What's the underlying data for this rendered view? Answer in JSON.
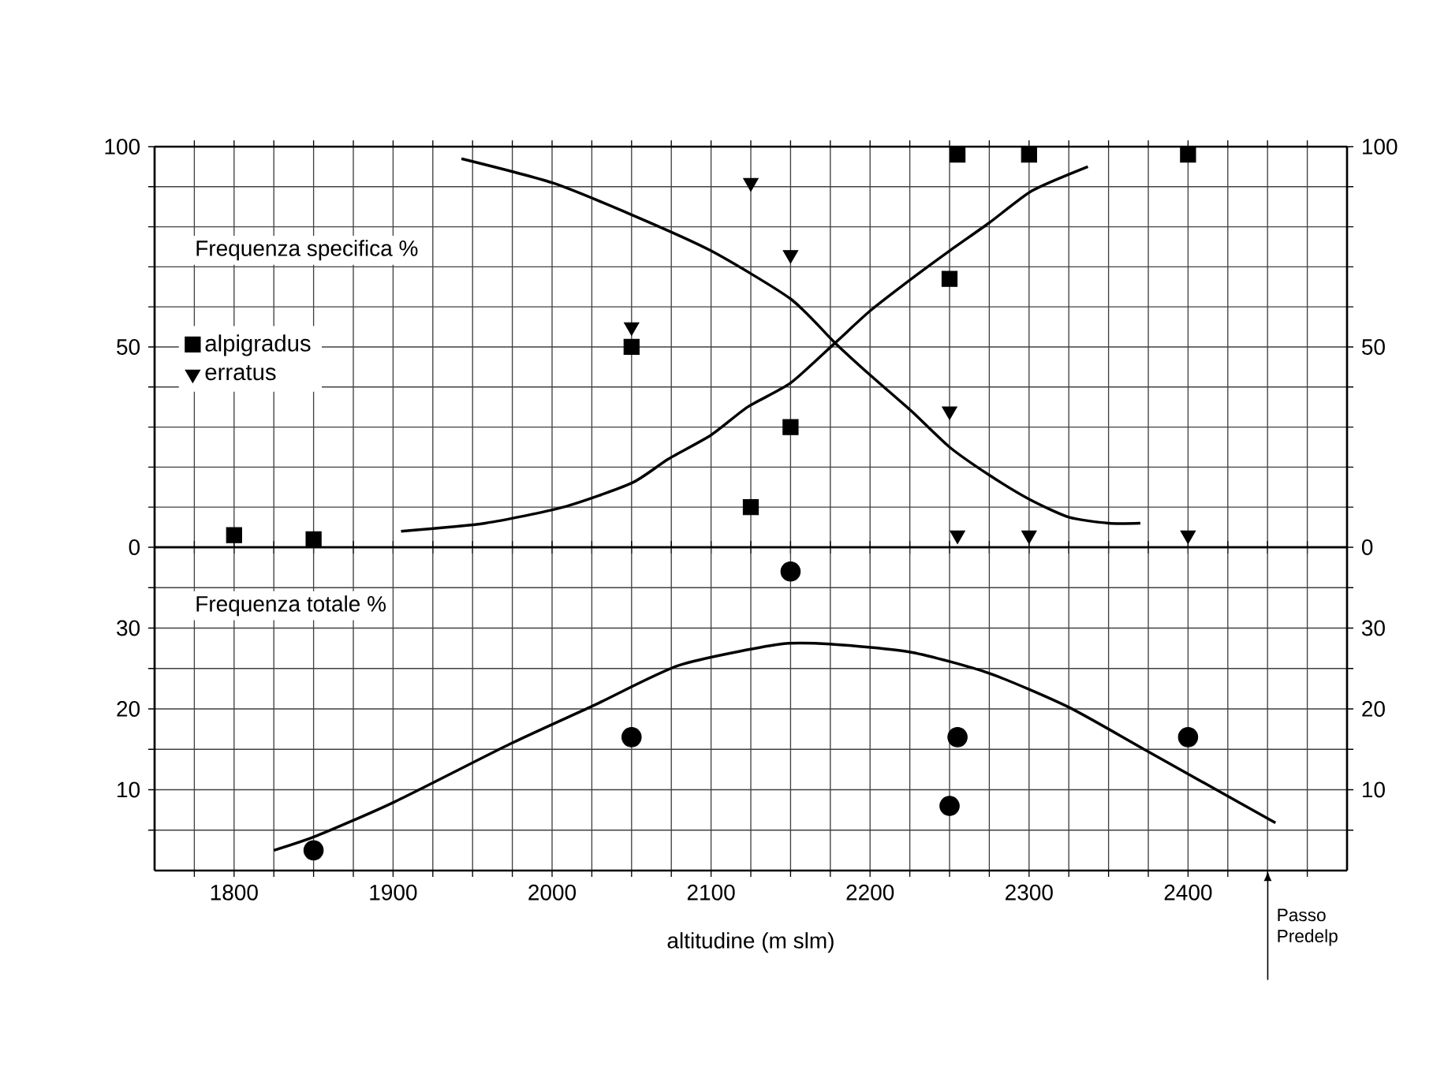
{
  "chart_data": [
    {
      "type": "scatter",
      "title": "Frequenza specifica %",
      "xlim": [
        1750,
        2500
      ],
      "xticks": [
        {
          "value": 1775,
          "label": null
        },
        1800,
        {
          "value": 1825,
          "label": null
        },
        {
          "value": 1850,
          "label": null
        },
        {
          "value": 1875,
          "label": null
        },
        1900,
        {
          "value": 1925,
          "label": null
        },
        {
          "value": 1950,
          "label": null
        },
        {
          "value": 1975,
          "label": null
        },
        2000,
        {
          "value": 2025,
          "label": null
        },
        {
          "value": 2050,
          "label": null
        },
        {
          "value": 2075,
          "label": null
        },
        2100,
        {
          "value": 2125,
          "label": null
        },
        {
          "value": 2150,
          "label": null
        },
        {
          "value": 2175,
          "label": null
        },
        2200,
        {
          "value": 2225,
          "label": null
        },
        {
          "value": 2250,
          "label": null
        },
        {
          "value": 2275,
          "label": null
        },
        2300,
        {
          "value": 2325,
          "label": null
        },
        {
          "value": 2350,
          "label": null
        },
        {
          "value": 2375,
          "label": null
        },
        2400,
        {
          "value": 2425,
          "label": null
        },
        {
          "value": 2450,
          "label": null
        },
        {
          "value": 2475,
          "label": null
        }
      ],
      "ylim": [
        0,
        100
      ],
      "yticks": [
        0,
        {
          "value": 10,
          "label": null
        },
        {
          "value": 20,
          "label": null
        },
        {
          "value": 30,
          "label": null
        },
        {
          "value": 40,
          "label": null
        },
        50,
        {
          "value": 60,
          "label": null
        },
        {
          "value": 70,
          "label": null
        },
        {
          "value": 80,
          "label": null
        },
        {
          "value": 90,
          "label": null
        },
        100
      ],
      "y2lim": [
        0,
        100
      ],
      "y2ticks": [
        0,
        {
          "value": 10,
          "label": null
        },
        {
          "value": 20,
          "label": null
        },
        {
          "value": 30,
          "label": null
        },
        {
          "value": 40,
          "label": null
        },
        50,
        {
          "value": 60,
          "label": null
        },
        {
          "value": 70,
          "label": null
        },
        {
          "value": 80,
          "label": null
        },
        {
          "value": 90,
          "label": null
        },
        100
      ],
      "tick_labels": "y",
      "grid": true,
      "legend": "left",
      "series": [
        {
          "name": "alpigradus",
          "marker": "square",
          "color": "#000000",
          "x": [
            1800,
            1850,
            2050,
            2125,
            2150,
            2250,
            2255,
            2300,
            2400
          ],
          "values": [
            3,
            2,
            50,
            10,
            30,
            67,
            98,
            98,
            98
          ]
        },
        {
          "name": "erratus",
          "marker": "triangle",
          "color": "#000000",
          "x": [
            2050,
            2125,
            2150,
            2250,
            2255,
            2300,
            2400
          ],
          "values": [
            55,
            91,
            73,
            34,
            3,
            3,
            3
          ]
        },
        {
          "type": "line",
          "marker": "none",
          "color": "#000000",
          "x": [
            1905,
            1958,
            2007,
            2050,
            2073,
            2100,
            2123,
            2150,
            2178,
            2200,
            2226,
            2250,
            2275,
            2302,
            2337
          ],
          "values": [
            4,
            6,
            10,
            16,
            22,
            28,
            35,
            41,
            51,
            59,
            67,
            74,
            81,
            89,
            95
          ]
        },
        {
          "type": "line",
          "marker": "none",
          "color": "#000000",
          "x": [
            1943,
            2000,
            2050,
            2100,
            2150,
            2178,
            2200,
            2226,
            2250,
            2275,
            2300,
            2325,
            2350,
            2370
          ],
          "values": [
            97,
            91,
            83,
            74,
            62,
            51,
            43,
            34,
            25,
            18,
            12,
            7.5,
            6,
            6
          ]
        }
      ]
    },
    {
      "type": "scatter",
      "title": "Frequenza totale %",
      "xlabel": "altitudine (m slm)",
      "xlim": [
        1750,
        2500
      ],
      "xticks": [
        {
          "value": 1775,
          "label": null
        },
        1800,
        {
          "value": 1825,
          "label": null
        },
        {
          "value": 1850,
          "label": null
        },
        {
          "value": 1875,
          "label": null
        },
        1900,
        {
          "value": 1925,
          "label": null
        },
        {
          "value": 1950,
          "label": null
        },
        {
          "value": 1975,
          "label": null
        },
        2000,
        {
          "value": 2025,
          "label": null
        },
        {
          "value": 2050,
          "label": null
        },
        {
          "value": 2075,
          "label": null
        },
        2100,
        {
          "value": 2125,
          "label": null
        },
        {
          "value": 2150,
          "label": null
        },
        {
          "value": 2175,
          "label": null
        },
        2200,
        {
          "value": 2225,
          "label": null
        },
        {
          "value": 2250,
          "label": null
        },
        {
          "value": 2275,
          "label": null
        },
        2300,
        {
          "value": 2325,
          "label": null
        },
        {
          "value": 2350,
          "label": null
        },
        {
          "value": 2375,
          "label": null
        },
        2400,
        {
          "value": 2425,
          "label": null
        },
        {
          "value": 2450,
          "label": null
        },
        {
          "value": 2475,
          "label": null
        }
      ],
      "ylim": [
        0,
        40
      ],
      "yticks": [
        {
          "value": 5,
          "label": null
        },
        10,
        {
          "value": 15,
          "label": null
        },
        20,
        {
          "value": 25,
          "label": null
        },
        30,
        {
          "value": 35,
          "label": null
        }
      ],
      "y2lim": [
        0,
        40
      ],
      "y2ticks": [
        {
          "value": 5,
          "label": null
        },
        10,
        {
          "value": 15,
          "label": null
        },
        20,
        {
          "value": 25,
          "label": null
        },
        30,
        {
          "value": 35,
          "label": null
        }
      ],
      "grid": true,
      "annotations": [
        "Passo Predelp"
      ],
      "series": [
        {
          "marker": "circle",
          "color": "#000000",
          "x": [
            1850,
            2050,
            2150,
            2250,
            2255,
            2400
          ],
          "values": [
            2.5,
            16.5,
            37,
            8,
            16.5,
            16.5
          ]
        },
        {
          "type": "line",
          "marker": "none",
          "color": "#000000",
          "x": [
            1825,
            1852,
            1901,
            1974,
            2027,
            2080,
            2143,
            2176,
            2226,
            2275,
            2325,
            2375,
            2455
          ],
          "values": [
            2.5,
            4.3,
            8.5,
            15.7,
            20.5,
            25.4,
            28,
            28,
            27,
            24.4,
            20.2,
            14.7,
            5.9
          ]
        }
      ]
    }
  ]
}
